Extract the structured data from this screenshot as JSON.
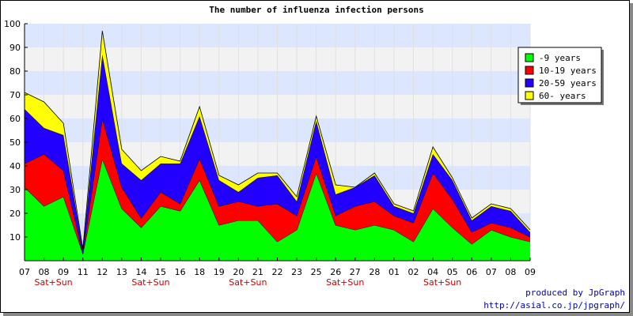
{
  "credit": {
    "line1": "produced by JpGraph",
    "line2": "http://asial.co.jp/jpgraph/"
  },
  "chart_data": {
    "type": "area",
    "stacked": true,
    "title": "The number of influenza infection persons",
    "xlabel": "",
    "ylabel": "",
    "ylim": [
      0,
      100
    ],
    "yticks": [
      10,
      20,
      30,
      40,
      50,
      60,
      70,
      80,
      90,
      100
    ],
    "grid": "horizontal bands",
    "legend_position": "right",
    "categories": [
      "07",
      "08",
      "09",
      "11",
      "12",
      "13",
      "14",
      "15",
      "16",
      "18",
      "19",
      "20",
      "21",
      "22",
      "23",
      "25",
      "26",
      "27",
      "28",
      "01",
      "02",
      "04",
      "05",
      "06",
      "07",
      "08",
      "09"
    ],
    "weekend_label": "Sat+Sun",
    "weekend_after_index": [
      1,
      6,
      11,
      16,
      21
    ],
    "series": [
      {
        "name": "-9 years",
        "color": "#00ff00",
        "values": [
          31,
          23,
          27,
          3,
          43,
          22,
          14,
          23,
          21,
          34,
          15,
          17,
          17,
          8,
          13,
          37,
          15,
          13,
          15,
          13,
          8,
          22,
          14,
          7,
          13,
          10,
          8
        ]
      },
      {
        "name": "10-19 years",
        "color": "#ff0000",
        "values": [
          10,
          22,
          11,
          0,
          17,
          9,
          4,
          6,
          3,
          9,
          8,
          8,
          6,
          16,
          6,
          7,
          4,
          10,
          10,
          6,
          8,
          15,
          12,
          5,
          3,
          4,
          2
        ]
      },
      {
        "name": "20-59 years",
        "color": "#2200ff",
        "values": [
          23,
          11,
          15,
          2,
          27,
          10,
          16,
          12,
          17,
          18,
          11,
          4,
          12,
          12,
          6,
          15,
          9,
          8,
          11,
          4,
          4,
          8,
          8,
          5,
          7,
          7,
          2
        ]
      },
      {
        "name": "60- years",
        "color": "#ffff00",
        "values": [
          7,
          11,
          5,
          0,
          10,
          6,
          4,
          3,
          1,
          4,
          2,
          3,
          2,
          1,
          2,
          2,
          4,
          0,
          1,
          1,
          1,
          3,
          1,
          1,
          1,
          1,
          1
        ]
      }
    ],
    "colors": {
      "band_blue": "#dde6ff",
      "band_gray": "#f2f2f2",
      "weekend_text": "#cc0000",
      "credit_text": "#0000aa"
    }
  }
}
